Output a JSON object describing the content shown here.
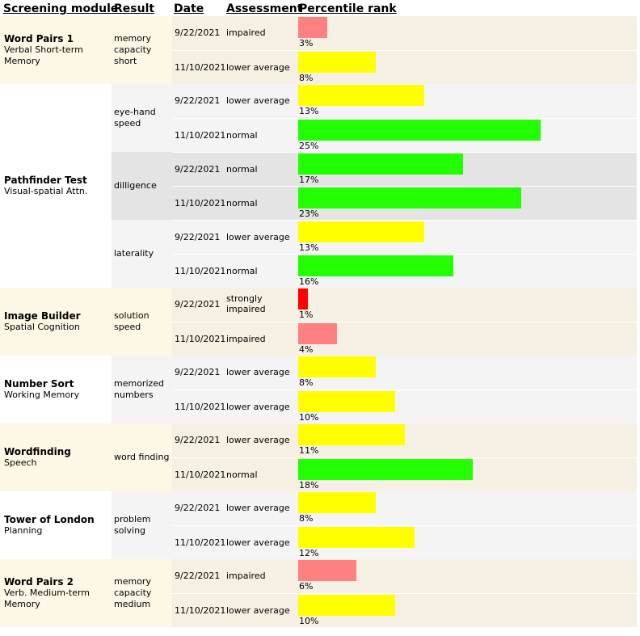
{
  "headers": {
    "module": "Screening module",
    "result": "Result",
    "date": "Date",
    "assessment": "Assessment",
    "percentile": "Percentile rank"
  },
  "colors": {
    "impaired": "#ff8080",
    "lower_average": "#ffff00",
    "normal": "#22ff00",
    "strongly_impaired": "#ff0000",
    "beige": "#f5f0e3",
    "cream": "#fdf8e6",
    "light_gray": "#f4f4f4",
    "gray": "#e4e4e4"
  },
  "bar_scale_max_percent": 25,
  "modules": [
    {
      "name": "Word Pairs 1",
      "subtitle": "Verbal Short-term Memory",
      "results": [
        {
          "label": "memory capacity short",
          "rows": [
            {
              "date": "9/22/2021",
              "assessment": "impaired",
              "percentile": 3,
              "percentile_label": "3%",
              "level": "impaired"
            },
            {
              "date": "11/10/2021",
              "assessment": "lower average",
              "percentile": 8,
              "percentile_label": "8%",
              "level": "lower_average"
            }
          ]
        }
      ]
    },
    {
      "name": "Pathfinder Test",
      "subtitle": "Visual-spatial Attn.",
      "results": [
        {
          "label": "eye-hand speed",
          "rows": [
            {
              "date": "9/22/2021",
              "assessment": "lower average",
              "percentile": 13,
              "percentile_label": "13%",
              "level": "lower_average"
            },
            {
              "date": "11/10/2021",
              "assessment": "normal",
              "percentile": 25,
              "percentile_label": "25%",
              "level": "normal"
            }
          ]
        },
        {
          "label": "dilligence",
          "rows": [
            {
              "date": "9/22/2021",
              "assessment": "normal",
              "percentile": 17,
              "percentile_label": "17%",
              "level": "normal"
            },
            {
              "date": "11/10/2021",
              "assessment": "normal",
              "percentile": 23,
              "percentile_label": "23%",
              "level": "normal"
            }
          ]
        },
        {
          "label": "laterality",
          "rows": [
            {
              "date": "9/22/2021",
              "assessment": "lower average",
              "percentile": 13,
              "percentile_label": "13%",
              "level": "lower_average"
            },
            {
              "date": "11/10/2021",
              "assessment": "normal",
              "percentile": 16,
              "percentile_label": "16%",
              "level": "normal"
            }
          ]
        }
      ]
    },
    {
      "name": "Image Builder",
      "subtitle": "Spatial Cognition",
      "results": [
        {
          "label": "solution speed",
          "rows": [
            {
              "date": "9/22/2021",
              "assessment": "strongly impaired",
              "percentile": 1,
              "percentile_label": "1%",
              "level": "strongly_impaired"
            },
            {
              "date": "11/10/2021",
              "assessment": "impaired",
              "percentile": 4,
              "percentile_label": "4%",
              "level": "impaired"
            }
          ]
        }
      ]
    },
    {
      "name": "Number Sort",
      "subtitle": "Working Memory",
      "results": [
        {
          "label": "memorized numbers",
          "rows": [
            {
              "date": "9/22/2021",
              "assessment": "lower average",
              "percentile": 8,
              "percentile_label": "8%",
              "level": "lower_average"
            },
            {
              "date": "11/10/2021",
              "assessment": "lower average",
              "percentile": 10,
              "percentile_label": "10%",
              "level": "lower_average"
            }
          ]
        }
      ]
    },
    {
      "name": "Wordfinding",
      "subtitle": "Speech",
      "results": [
        {
          "label": "word finding",
          "rows": [
            {
              "date": "9/22/2021",
              "assessment": "lower average",
              "percentile": 11,
              "percentile_label": "11%",
              "level": "lower_average"
            },
            {
              "date": "11/10/2021",
              "assessment": "normal",
              "percentile": 18,
              "percentile_label": "18%",
              "level": "normal"
            }
          ]
        }
      ]
    },
    {
      "name": "Tower of London",
      "subtitle": "Planning",
      "results": [
        {
          "label": "problem solving",
          "rows": [
            {
              "date": "9/22/2021",
              "assessment": "lower average",
              "percentile": 8,
              "percentile_label": "8%",
              "level": "lower_average"
            },
            {
              "date": "11/10/2021",
              "assessment": "lower average",
              "percentile": 12,
              "percentile_label": "12%",
              "level": "lower_average"
            }
          ]
        }
      ]
    },
    {
      "name": "Word Pairs 2",
      "subtitle": "Verb. Medium-term Memory",
      "results": [
        {
          "label": "memory capacity medium",
          "rows": [
            {
              "date": "9/22/2021",
              "assessment": "impaired",
              "percentile": 6,
              "percentile_label": "6%",
              "level": "impaired"
            },
            {
              "date": "11/10/2021",
              "assessment": "lower average",
              "percentile": 10,
              "percentile_label": "10%",
              "level": "lower_average"
            }
          ]
        }
      ]
    }
  ]
}
